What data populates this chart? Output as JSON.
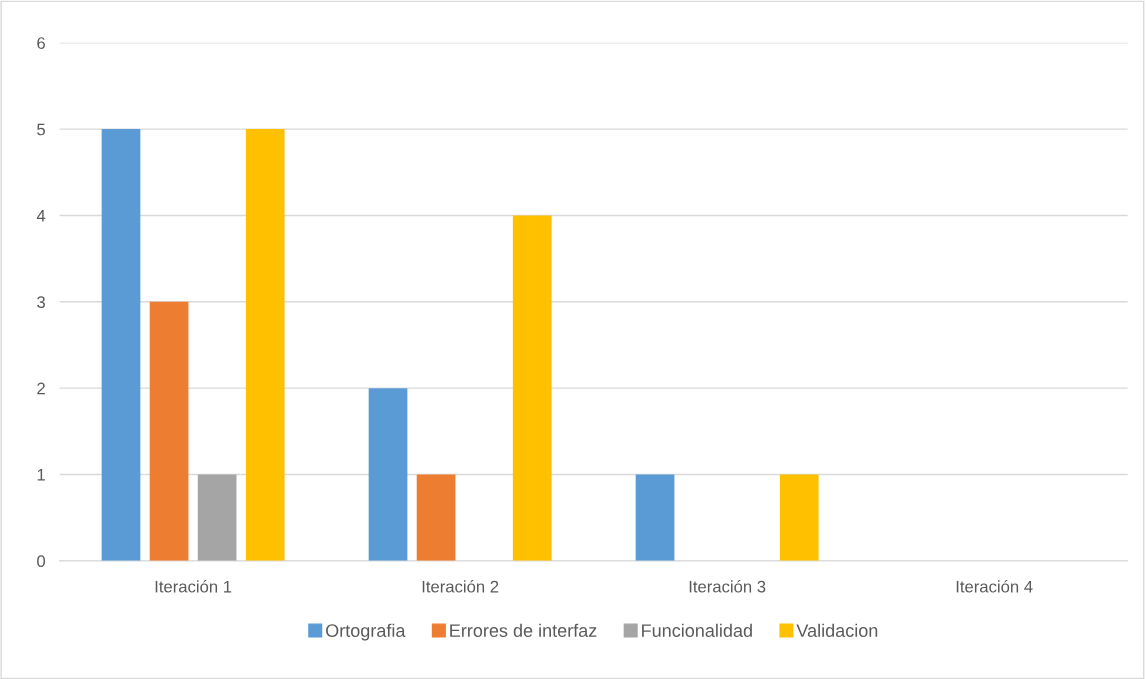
{
  "chart_data": {
    "type": "bar",
    "categories": [
      "Iteración 1",
      "Iteración 2",
      "Iteración 3",
      "Iteración 4"
    ],
    "series": [
      {
        "name": "Ortografia",
        "color": "#5b9bd5",
        "values": [
          5,
          2,
          1,
          0
        ]
      },
      {
        "name": "Errores de interfaz",
        "color": "#ed7d31",
        "values": [
          3,
          1,
          0,
          0
        ]
      },
      {
        "name": "Funcionalidad",
        "color": "#a5a5a5",
        "values": [
          1,
          0,
          0,
          0
        ]
      },
      {
        "name": "Validacion",
        "color": "#ffc000",
        "values": [
          5,
          4,
          1,
          0
        ]
      }
    ],
    "ylim": [
      0,
      6
    ],
    "yticks": [
      0,
      1,
      2,
      3,
      4,
      5,
      6
    ],
    "grid": "y",
    "legend": "bottom"
  }
}
